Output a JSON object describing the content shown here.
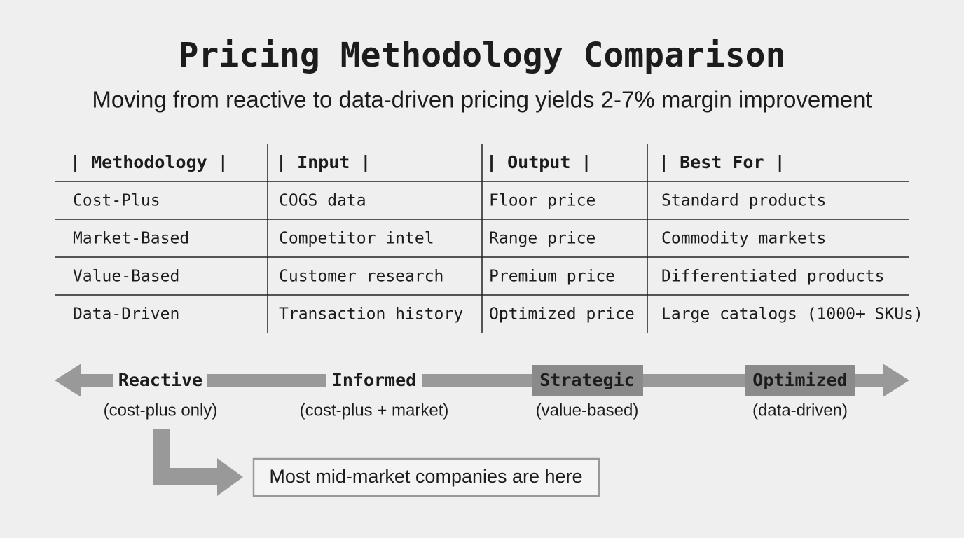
{
  "header": {
    "title": "Pricing Methodology Comparison",
    "subtitle": "Moving from reactive to data-driven pricing yields 2-7% margin improvement"
  },
  "table": {
    "header": [
      "| Methodology |",
      "| Input |",
      "| Output |",
      "| Best For |"
    ],
    "rows": [
      [
        "Cost-Plus",
        "COGS data",
        "Floor price",
        "Standard products"
      ],
      [
        "Market-Based",
        "Competitor intel",
        "Range price",
        "Commodity markets"
      ],
      [
        "Value-Based",
        "Customer research",
        "Premium price",
        "Differentiated products"
      ],
      [
        "Data-Driven",
        "Transaction history",
        "Optimized price",
        "Large catalogs (1000+ SKUs)"
      ]
    ]
  },
  "spectrum": {
    "stages": [
      {
        "label": "Reactive",
        "note": "(cost-plus only)"
      },
      {
        "label": "Informed",
        "note": "(cost-plus + market)"
      },
      {
        "label": "Strategic",
        "note": "(value-based)"
      },
      {
        "label": "Optimized",
        "note": "(data-driven)"
      }
    ]
  },
  "callout": {
    "text": "Most mid-market companies are here"
  }
}
